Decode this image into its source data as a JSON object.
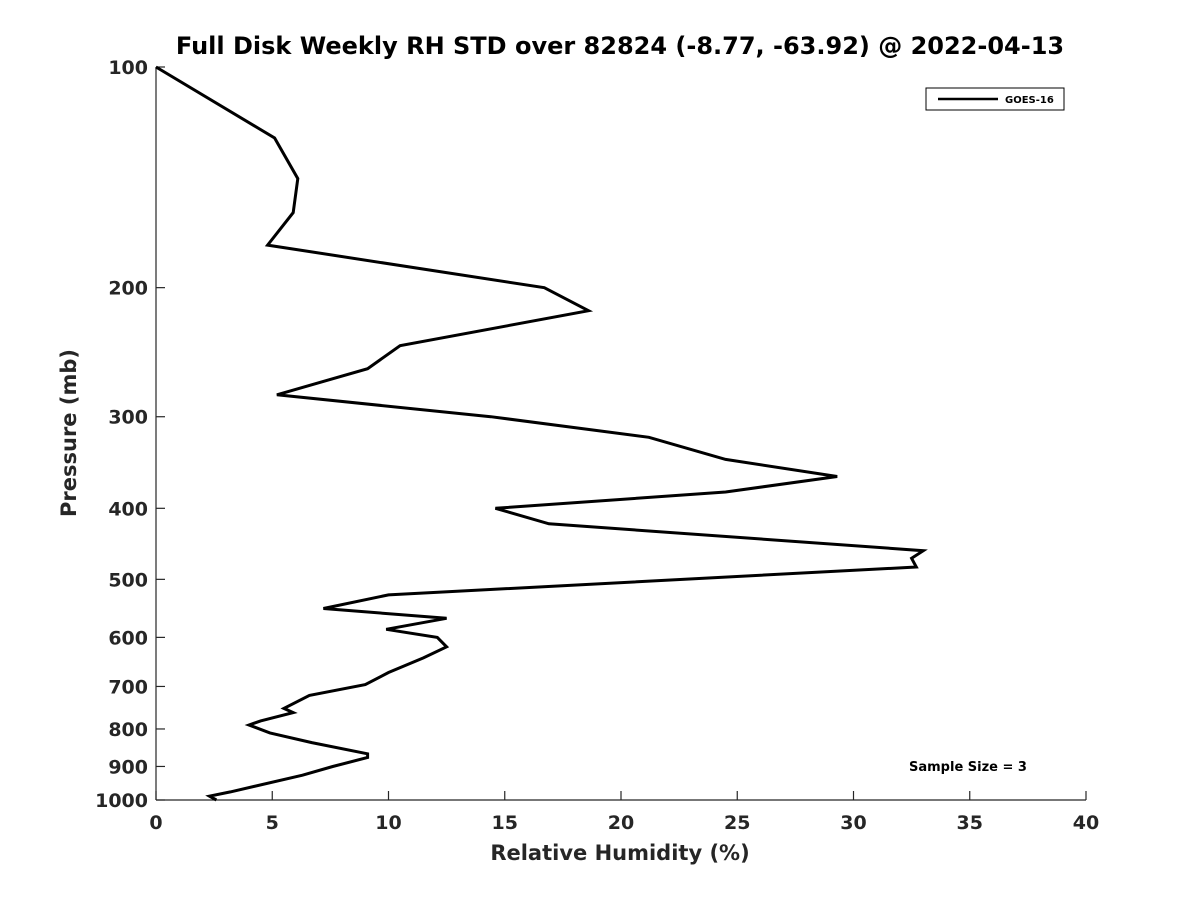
{
  "chart_data": {
    "type": "line",
    "title": "Full Disk Weekly RH STD over 82824 (-8.77, -63.92) @ 2022-04-13",
    "xlabel": "Relative Humidity (%)",
    "ylabel": "Pressure (mb)",
    "xlim": [
      0,
      40
    ],
    "ylim": [
      100,
      1000
    ],
    "y_scale": "log",
    "y_reversed": true,
    "x_ticks": [
      0,
      5,
      10,
      15,
      20,
      25,
      30,
      35,
      40
    ],
    "y_ticks": [
      100,
      200,
      300,
      400,
      500,
      600,
      700,
      800,
      900,
      1000
    ],
    "grid": false,
    "legend_position": "top-right",
    "annotation": "Sample Size = 3",
    "series": [
      {
        "name": "GOES-16",
        "color": "#000000",
        "points": [
          [
            0.0,
            100
          ],
          [
            5.1,
            125
          ],
          [
            6.1,
            142
          ],
          [
            5.9,
            158
          ],
          [
            4.8,
            175
          ],
          [
            16.7,
            200
          ],
          [
            18.6,
            215
          ],
          [
            10.5,
            240
          ],
          [
            9.1,
            258
          ],
          [
            5.2,
            280
          ],
          [
            14.4,
            300
          ],
          [
            21.2,
            320
          ],
          [
            24.5,
            343
          ],
          [
            29.3,
            362
          ],
          [
            24.5,
            380
          ],
          [
            14.6,
            400
          ],
          [
            16.9,
            420
          ],
          [
            33.0,
            457
          ],
          [
            32.5,
            468
          ],
          [
            32.7,
            481
          ],
          [
            10.0,
            525
          ],
          [
            7.2,
            548
          ],
          [
            12.5,
            565
          ],
          [
            9.9,
            585
          ],
          [
            12.1,
            600
          ],
          [
            12.5,
            618
          ],
          [
            11.5,
            640
          ],
          [
            10.0,
            670
          ],
          [
            9.0,
            696
          ],
          [
            6.6,
            720
          ],
          [
            5.5,
            750
          ],
          [
            5.9,
            760
          ],
          [
            4.5,
            780
          ],
          [
            4.0,
            790
          ],
          [
            4.9,
            810
          ],
          [
            6.7,
            835
          ],
          [
            9.1,
            865
          ],
          [
            9.1,
            875
          ],
          [
            7.6,
            900
          ],
          [
            6.3,
            925
          ],
          [
            3.2,
            975
          ],
          [
            2.3,
            988
          ],
          [
            2.6,
            1000
          ]
        ]
      }
    ]
  }
}
